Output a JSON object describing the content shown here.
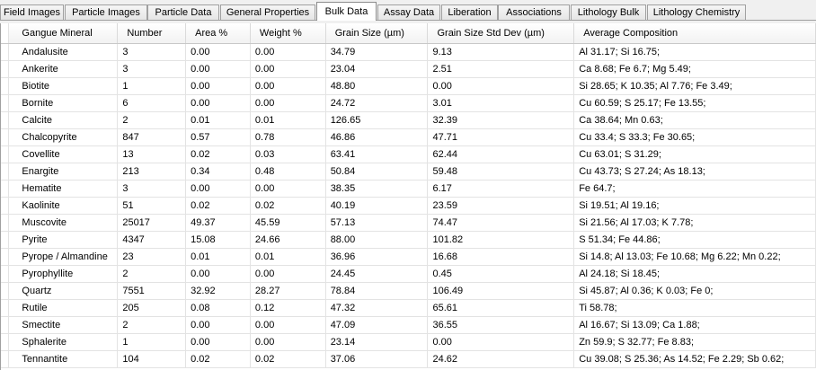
{
  "tabs": [
    {
      "label": "Field Images",
      "active": false
    },
    {
      "label": "Particle Images",
      "active": false
    },
    {
      "label": "Particle Data",
      "active": false
    },
    {
      "label": "General Properties",
      "active": false
    },
    {
      "label": "Bulk Data",
      "active": true
    },
    {
      "label": "Assay Data",
      "active": false
    },
    {
      "label": "Liberation",
      "active": false
    },
    {
      "label": "Associations",
      "active": false
    },
    {
      "label": "Lithology Bulk",
      "active": false
    },
    {
      "label": "Lithology Chemistry",
      "active": false
    }
  ],
  "table": {
    "columns": [
      "Gangue Mineral",
      "Number",
      "Area %",
      "Weight %",
      "Grain Size (µm)",
      "Grain Size Std Dev (µm)",
      "Average Composition"
    ],
    "rows": [
      [
        "Andalusite",
        "3",
        "0.00",
        "0.00",
        "34.79",
        "9.13",
        "Al 31.17; Si 16.75;"
      ],
      [
        "Ankerite",
        "3",
        "0.00",
        "0.00",
        "23.04",
        "2.51",
        "Ca 8.68; Fe 6.7; Mg 5.49;"
      ],
      [
        "Biotite",
        "1",
        "0.00",
        "0.00",
        "48.80",
        "0.00",
        "Si 28.65; K 10.35; Al 7.76; Fe 3.49;"
      ],
      [
        "Bornite",
        "6",
        "0.00",
        "0.00",
        "24.72",
        "3.01",
        "Cu 60.59; S 25.17; Fe 13.55;"
      ],
      [
        "Calcite",
        "2",
        "0.01",
        "0.01",
        "126.65",
        "32.39",
        "Ca 38.64; Mn 0.63;"
      ],
      [
        "Chalcopyrite",
        "847",
        "0.57",
        "0.78",
        "46.86",
        "47.71",
        "Cu 33.4; S 33.3; Fe 30.65;"
      ],
      [
        "Covellite",
        "13",
        "0.02",
        "0.03",
        "63.41",
        "62.44",
        "Cu 63.01; S 31.29;"
      ],
      [
        "Enargite",
        "213",
        "0.34",
        "0.48",
        "50.84",
        "59.48",
        "Cu 43.73; S 27.24; As 18.13;"
      ],
      [
        "Hematite",
        "3",
        "0.00",
        "0.00",
        "38.35",
        "6.17",
        "Fe 64.7;"
      ],
      [
        "Kaolinite",
        "51",
        "0.02",
        "0.02",
        "40.19",
        "23.59",
        "Si 19.51; Al 19.16;"
      ],
      [
        "Muscovite",
        "25017",
        "49.37",
        "45.59",
        "57.13",
        "74.47",
        "Si 21.56; Al 17.03; K 7.78;"
      ],
      [
        "Pyrite",
        "4347",
        "15.08",
        "24.66",
        "88.00",
        "101.82",
        "S 51.34; Fe 44.86;"
      ],
      [
        "Pyrope / Almandine",
        "23",
        "0.01",
        "0.01",
        "36.96",
        "16.68",
        "Si 14.8; Al 13.03; Fe 10.68; Mg 6.22; Mn 0.22;"
      ],
      [
        "Pyrophyllite",
        "2",
        "0.00",
        "0.00",
        "24.45",
        "0.45",
        "Al 24.18; Si 18.45;"
      ],
      [
        "Quartz",
        "7551",
        "32.92",
        "28.27",
        "78.84",
        "106.49",
        "Si 45.87; Al 0.36; K 0.03; Fe 0;"
      ],
      [
        "Rutile",
        "205",
        "0.08",
        "0.12",
        "47.32",
        "65.61",
        "Ti 58.78;"
      ],
      [
        "Smectite",
        "2",
        "0.00",
        "0.00",
        "47.09",
        "36.55",
        "Al 16.67; Si 13.09; Ca 1.88;"
      ],
      [
        "Sphalerite",
        "1",
        "0.00",
        "0.00",
        "23.14",
        "0.00",
        "Zn 59.9; S 32.77; Fe 8.83;"
      ],
      [
        "Tennantite",
        "104",
        "0.02",
        "0.02",
        "37.06",
        "24.62",
        "Cu 39.08; S 25.36; As 14.52; Fe 2.29; Sb 0.62;"
      ]
    ]
  }
}
